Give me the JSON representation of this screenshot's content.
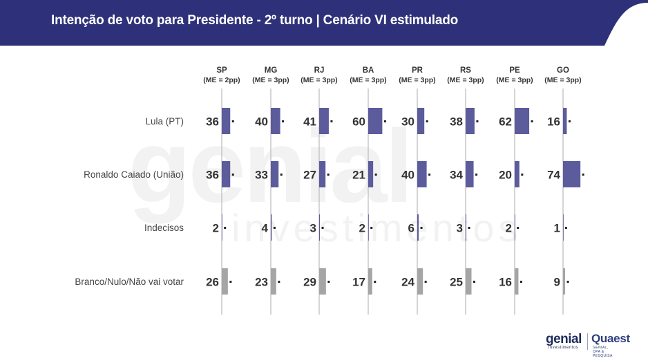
{
  "header": {
    "title": "Intenção de voto para Presidente - 2º turno | Cenário VI estimulado"
  },
  "colors": {
    "header_bg": "#2e3179",
    "bar_candidate": "#5c5b9c",
    "bar_other": "#a5a5a5",
    "text": "#333333"
  },
  "watermark": {
    "line1": "genial",
    "line2": "investimentos"
  },
  "logos": {
    "genial": "genial",
    "genial_sub": "investimentos",
    "quaest": "Quaest",
    "quaest_sub": "GENIAL, OPA & PESQUISA"
  },
  "chart_data": {
    "type": "bar",
    "orientation": "horizontal",
    "regions": [
      {
        "name": "SP",
        "me": "(ME = 2pp)"
      },
      {
        "name": "MG",
        "me": "(ME = 3pp)"
      },
      {
        "name": "RJ",
        "me": "(ME = 3pp)"
      },
      {
        "name": "BA",
        "me": "(ME = 3pp)"
      },
      {
        "name": "PR",
        "me": "(ME = 3pp)"
      },
      {
        "name": "RS",
        "me": "(ME = 3pp)"
      },
      {
        "name": "PE",
        "me": "(ME = 3pp)"
      },
      {
        "name": "GO",
        "me": "(ME = 3pp)"
      }
    ],
    "series": [
      {
        "name": "Lula (PT)",
        "color": "#5c5b9c",
        "values": [
          36,
          40,
          41,
          60,
          30,
          38,
          62,
          16
        ]
      },
      {
        "name": "Ronaldo Caiado (União)",
        "color": "#5c5b9c",
        "values": [
          36,
          33,
          27,
          21,
          40,
          34,
          20,
          74
        ]
      },
      {
        "name": "Indecisos",
        "color": "#5c5b9c",
        "values": [
          2,
          4,
          3,
          2,
          6,
          3,
          2,
          1
        ]
      },
      {
        "name": "Branco/Nulo/Não vai votar",
        "color": "#a5a5a5",
        "values": [
          26,
          23,
          29,
          17,
          24,
          25,
          16,
          9
        ]
      }
    ],
    "xlim": [
      0,
      100
    ]
  }
}
